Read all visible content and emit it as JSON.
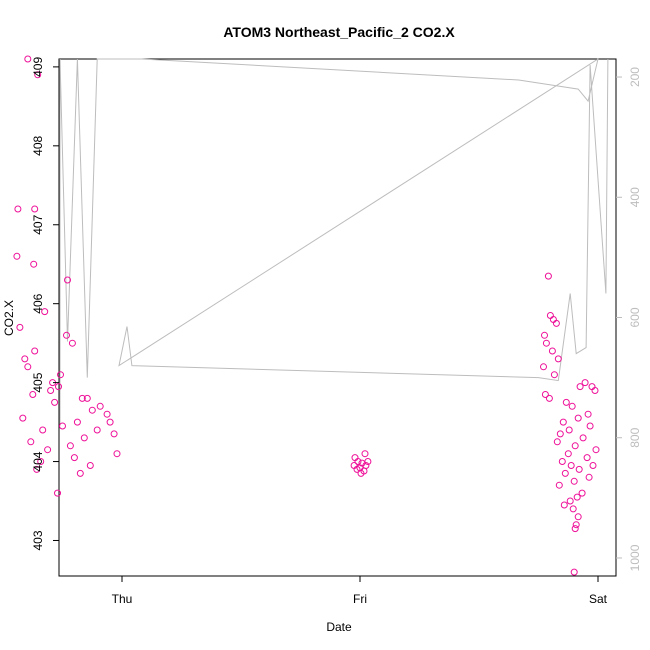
{
  "colors": {
    "points": "#ee1199",
    "line": "#bdbdbd",
    "right_axis": "#bdbdbd",
    "axis": "#000000"
  },
  "chart_data": {
    "type": "scatter",
    "title": "ATOM3 Northeast_Pacific_2 CO2.X",
    "xlabel": "Date",
    "ylabel": "CO2.X",
    "x_tick_labels": [
      "Thu",
      "Fri",
      "Sat"
    ],
    "y_ticks": [
      403,
      404,
      405,
      406,
      407,
      408,
      409
    ],
    "ylim": [
      402.55,
      409.1
    ],
    "right_axis": {
      "ticks": [
        200,
        400,
        600,
        800,
        1000
      ],
      "lim": [
        1030,
        170
      ],
      "series_role": "overlay line (secondary axis)"
    },
    "series": [
      {
        "role": "points",
        "groups": [
          {
            "x_tick": "Thu",
            "values": [
              409.1,
              408.9,
              407.2,
              407.2,
              406.6,
              406.5,
              406.3,
              405.9,
              405.7,
              405.6,
              405.5,
              405.4,
              405.3,
              405.2,
              405.1,
              405.0,
              404.95,
              404.9,
              404.85,
              404.8,
              404.8,
              404.75,
              404.7,
              404.65,
              404.6,
              404.55,
              404.5,
              404.5,
              404.45,
              404.4,
              404.4,
              404.35,
              404.3,
              404.25,
              404.2,
              404.15,
              404.1,
              404.05,
              404.0,
              403.95,
              403.9,
              403.85,
              403.6
            ],
            "x_offsets_hours": [
              -9.5,
              -8.5,
              -10.5,
              -8.8,
              -10.6,
              -8.9,
              -5.5,
              -7.8,
              -10.3,
              -5.6,
              -5.0,
              -8.8,
              -9.8,
              -9.5,
              -6.2,
              -7.0,
              -6.4,
              -7.2,
              -9.0,
              -4.0,
              -3.5,
              -6.8,
              -2.2,
              -3.0,
              -1.5,
              -10.0,
              -1.2,
              -4.5,
              -6.0,
              -2.5,
              -8.0,
              -0.8,
              -3.8,
              -9.2,
              -5.2,
              -7.5,
              -0.5,
              -4.8,
              -8.2,
              -3.2,
              -8.6,
              -4.2,
              -6.5
            ]
          },
          {
            "x_tick": "Fri",
            "values": [
              404.1,
              404.05,
              404.0,
              404.0,
              403.98,
              403.95,
              403.95,
              403.92,
              403.9,
              403.88,
              403.85
            ],
            "x_offsets_hours": [
              0.5,
              -0.5,
              0.8,
              -0.2,
              0.2,
              -0.6,
              0.6,
              0.0,
              -0.3,
              0.4,
              0.1
            ]
          },
          {
            "x_tick": "Sat",
            "values": [
              406.35,
              405.85,
              405.8,
              405.75,
              405.6,
              405.5,
              405.4,
              405.3,
              405.2,
              405.1,
              405.0,
              404.95,
              404.95,
              404.9,
              404.85,
              404.8,
              404.75,
              404.7,
              404.6,
              404.55,
              404.5,
              404.45,
              404.4,
              404.35,
              404.3,
              404.25,
              404.2,
              404.15,
              404.1,
              404.05,
              404.0,
              403.95,
              403.95,
              403.9,
              403.85,
              403.8,
              403.75,
              403.7,
              403.6,
              403.55,
              403.5,
              403.45,
              403.4,
              403.3,
              403.2,
              403.15,
              402.6
            ],
            "x_offsets_hours": [
              -5.0,
              -4.8,
              -4.5,
              -4.2,
              -5.4,
              -5.2,
              -4.6,
              -4.0,
              -5.5,
              -4.4,
              -1.3,
              -0.6,
              -1.8,
              -0.3,
              -5.3,
              -4.9,
              -3.2,
              -2.6,
              -1.0,
              -2.0,
              -3.5,
              -0.8,
              -2.9,
              -3.8,
              -1.5,
              -4.1,
              -2.3,
              -0.2,
              -3.0,
              -1.1,
              -3.6,
              -0.5,
              -2.7,
              -1.9,
              -3.3,
              -0.9,
              -2.4,
              -3.9,
              -1.6,
              -2.1,
              -2.8,
              -3.4,
              -2.5,
              -2.0,
              -2.2,
              -2.3,
              -2.4
            ]
          }
        ]
      },
      {
        "role": "overlay-line",
        "points_x_hours_from_thu_tick": [
          -10.5,
          -10.0,
          -9.5,
          -9.0,
          -8.5,
          -8.0,
          -7.5,
          -6.5,
          -5.5,
          -4.5,
          -3.5,
          -2.5,
          -1.0,
          0.0,
          2.0,
          40.0,
          46.0,
          47.0,
          48.0,
          -0.3,
          0.5,
          1.0,
          42.0,
          44.0,
          45.2,
          45.8,
          46.8,
          47.2,
          48.8,
          49.0
        ],
        "points_y_right_axis": [
          780,
          180,
          610,
          170,
          600,
          170,
          600,
          170,
          640,
          170,
          700,
          170,
          170,
          170,
          170,
          205,
          220,
          240,
          170,
          680,
          615,
          680,
          700,
          705,
          560,
          660,
          650,
          180,
          560,
          170
        ]
      }
    ]
  }
}
